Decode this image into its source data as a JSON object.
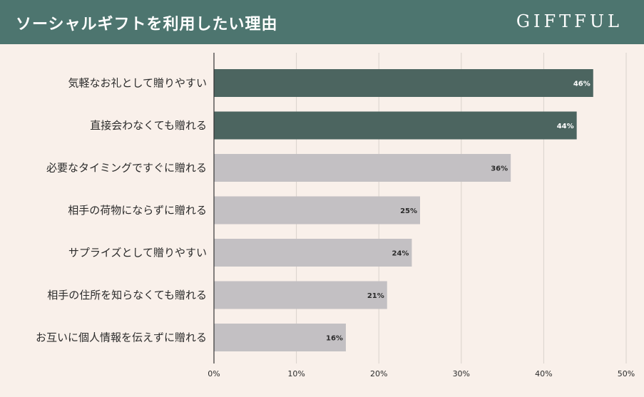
{
  "header": {
    "title": "ソーシャルギフトを利用したい理由",
    "logo": "GIFTFUL"
  },
  "colors": {
    "header_bg": "#4d756f",
    "background": "#f9f0ea",
    "highlight_bar": "#4c6560",
    "regular_bar": "#c3c0c3",
    "grid": "#d9d2cc"
  },
  "chart_data": {
    "type": "bar",
    "orientation": "horizontal",
    "categories": [
      "気軽なお礼として贈りやすい",
      "直接会わなくても贈れる",
      "必要なタイミングですぐに贈れる",
      "相手の荷物にならずに贈れる",
      "サプライズとして贈りやすい",
      "相手の住所を知らなくても贈れる",
      "お互いに個人情報を伝えずに贈れる"
    ],
    "values": [
      46,
      44,
      36,
      25,
      24,
      21,
      16
    ],
    "value_labels": [
      "46%",
      "44%",
      "36%",
      "25%",
      "24%",
      "21%",
      "16%"
    ],
    "highlighted": [
      true,
      true,
      false,
      false,
      false,
      false,
      false
    ],
    "xlim": [
      0,
      50
    ],
    "x_ticks": [
      0,
      10,
      20,
      30,
      40,
      50
    ],
    "x_tick_labels": [
      "0%",
      "10%",
      "20%",
      "30%",
      "40%",
      "50%"
    ],
    "grid": true
  }
}
